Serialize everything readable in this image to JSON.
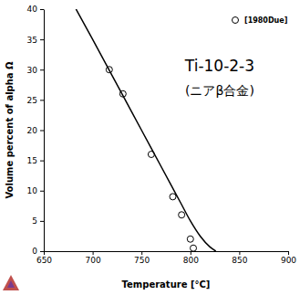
{
  "chart_data": {
    "type": "line",
    "xlabel": "Temperature [°C]",
    "ylabel": "Volume percent of alpha Ω",
    "annotations": [
      "Ti-10-2-3",
      "(ニアβ合金)"
    ],
    "xlim": [
      650,
      900
    ],
    "xticks": [
      650,
      700,
      750,
      800,
      850,
      900
    ],
    "ylim": [
      0,
      40
    ],
    "yticks": [
      0,
      5,
      10,
      15,
      20,
      25,
      30,
      35,
      40
    ],
    "grid": false,
    "legend": "top-right",
    "series": [
      {
        "type": "line",
        "color": "#000000",
        "line_style": "solid",
        "x": [
          683,
          700,
          720,
          740,
          760,
          780,
          790,
          800,
          810,
          820,
          826
        ],
        "values": [
          40,
          35,
          29,
          23,
          17,
          11,
          8,
          5,
          2.5,
          0.7,
          0
        ]
      },
      {
        "type": "scatter",
        "name": "[1980Due]",
        "color": "#000000",
        "marker": "circle",
        "x": [
          717,
          731,
          760,
          782,
          791,
          800,
          803
        ],
        "values": [
          30,
          26,
          16,
          9,
          6,
          2,
          0.5
        ]
      }
    ]
  }
}
